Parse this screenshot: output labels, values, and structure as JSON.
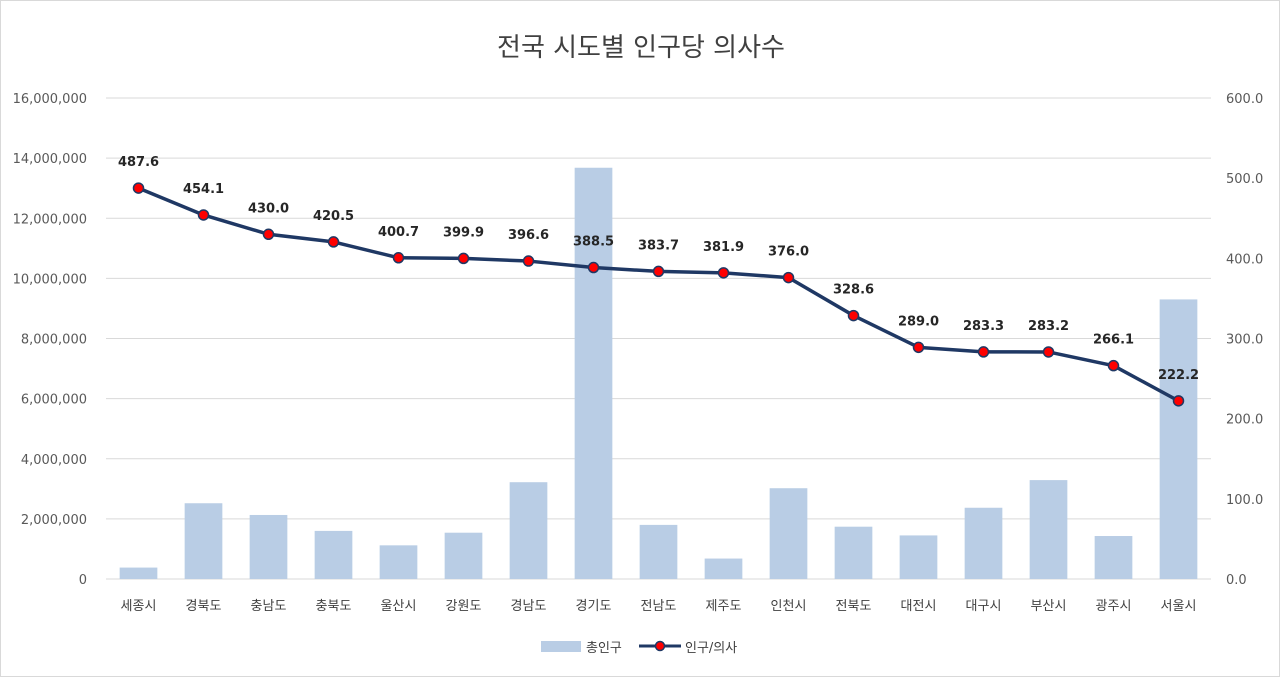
{
  "chart_data": {
    "type": "bar+line",
    "title": "전국 시도별 인구당 의사수",
    "categories": [
      "세종시",
      "경북도",
      "충남도",
      "충북도",
      "울산시",
      "강원도",
      "경남도",
      "경기도",
      "전남도",
      "제주도",
      "인천시",
      "전북도",
      "대전시",
      "대구시",
      "부산시",
      "광주시",
      "서울시"
    ],
    "series": [
      {
        "name": "총인구",
        "type": "bar",
        "axis": "left",
        "color": "#b9cde5",
        "values": [
          380000,
          2520000,
          2130000,
          1600000,
          1120000,
          1540000,
          3220000,
          13680000,
          1800000,
          680000,
          3020000,
          1740000,
          1450000,
          2370000,
          3290000,
          1430000,
          9300000
        ]
      },
      {
        "name": "인구/의사",
        "type": "line",
        "axis": "right",
        "color": "#1f3864",
        "marker_color": "#ff0000",
        "values": [
          487.6,
          454.1,
          430.0,
          420.5,
          400.7,
          399.9,
          396.6,
          388.5,
          383.7,
          381.9,
          376.0,
          328.6,
          289.0,
          283.3,
          283.2,
          266.1,
          222.2
        ],
        "labels": [
          "487.6",
          "454.1",
          "430.0",
          "420.5",
          "400.7",
          "399.9",
          "396.6",
          "388.5",
          "383.7",
          "381.9",
          "376.0",
          "328.6",
          "289.0",
          "283.3",
          "283.2",
          "266.1",
          "222.2"
        ]
      }
    ],
    "y_left": {
      "min": 0,
      "max": 16000000,
      "ticks": [
        "0",
        "2,000,000",
        "4,000,000",
        "6,000,000",
        "8,000,000",
        "10,000,000",
        "12,000,000",
        "14,000,000",
        "16,000,000"
      ]
    },
    "y_right": {
      "min": 0,
      "max": 600,
      "ticks": [
        "0.0",
        "100.0",
        "200.0",
        "300.0",
        "400.0",
        "500.0",
        "600.0"
      ]
    },
    "grid": true,
    "legend_position": "bottom-center"
  }
}
